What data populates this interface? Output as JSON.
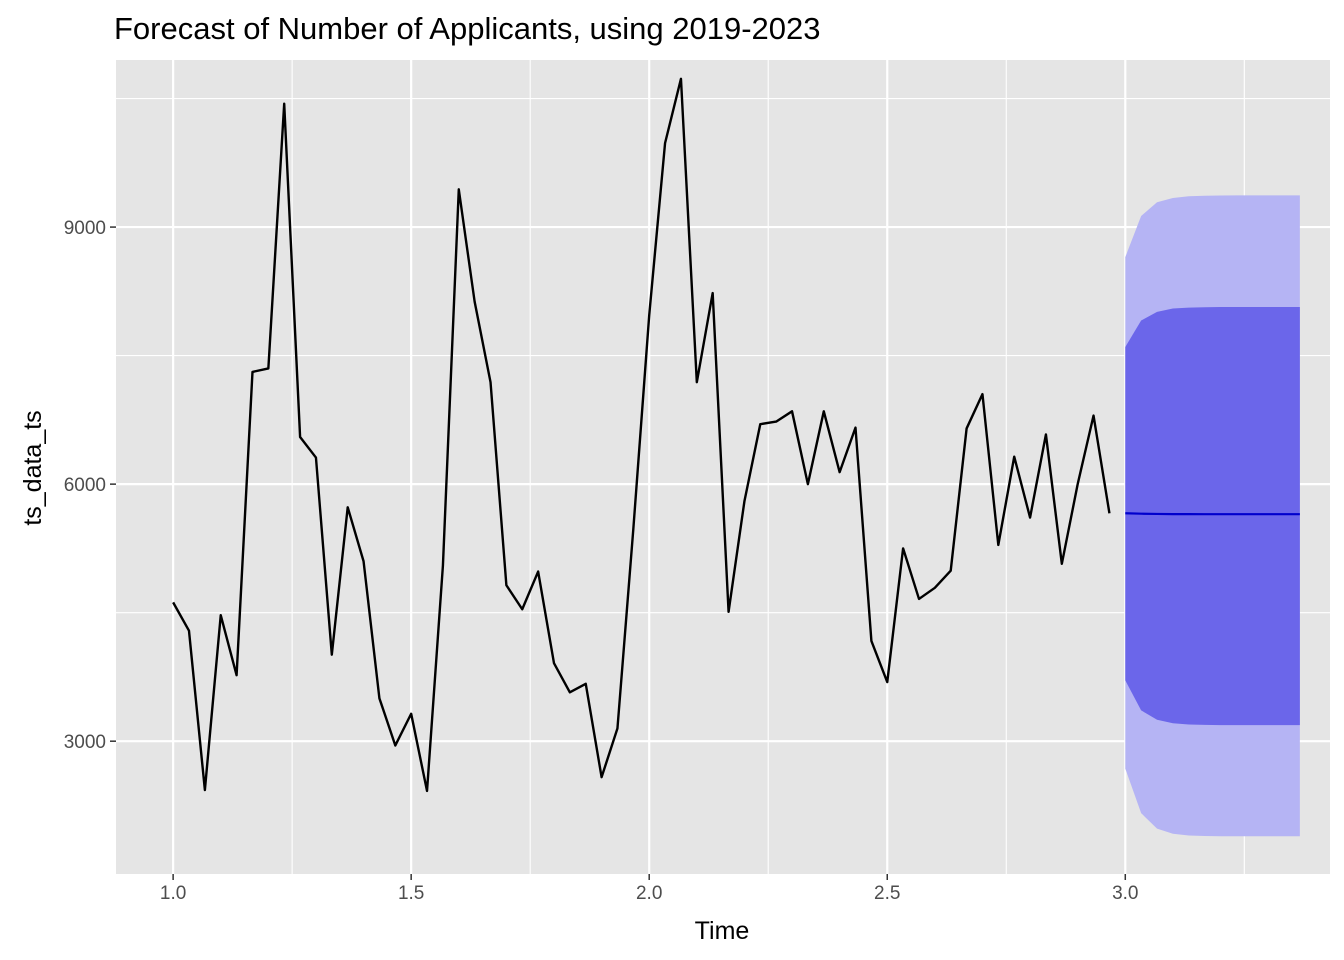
{
  "chart_data": {
    "type": "line",
    "title": "Forecast of Number of Applicants, using 2019-2023",
    "xlabel": "Time",
    "ylabel": "ts_data_ts",
    "xlim": [
      0.88,
      3.43
    ],
    "ylim": [
      1450,
      10950
    ],
    "x_ticks": [
      1.0,
      1.5,
      2.0,
      2.5,
      3.0
    ],
    "x_tick_labels": [
      "1.0",
      "1.5",
      "2.0",
      "2.5",
      "3.0"
    ],
    "x_minor_ticks": [
      1.25,
      1.75,
      2.25,
      2.75,
      3.25
    ],
    "y_ticks": [
      3000,
      6000,
      9000
    ],
    "y_tick_labels": [
      "3000",
      "6000",
      "9000"
    ],
    "y_minor_ticks": [
      4500,
      7500,
      10500
    ],
    "grid": true,
    "legend": "none",
    "colors": {
      "panel_bg": "#e5e5e5",
      "grid": "#ffffff",
      "series_line": "#000000",
      "forecast_line": "#0000cc",
      "band_95": "#b5b4f4",
      "band_80": "#6b66ea"
    },
    "series": [
      {
        "values": [
          [
            1.0,
            4620
          ],
          [
            1.0333,
            4290
          ],
          [
            1.0667,
            2430
          ],
          [
            1.1,
            4470
          ],
          [
            1.1333,
            3770
          ],
          [
            1.1667,
            7310
          ],
          [
            1.2,
            7350
          ],
          [
            1.2333,
            10440
          ],
          [
            1.2667,
            6550
          ],
          [
            1.3,
            6310
          ],
          [
            1.3333,
            4010
          ],
          [
            1.3667,
            5730
          ],
          [
            1.4,
            5100
          ],
          [
            1.4333,
            3500
          ],
          [
            1.4667,
            2950
          ],
          [
            1.5,
            3320
          ],
          [
            1.5333,
            2420
          ],
          [
            1.5667,
            5050
          ],
          [
            1.6,
            9440
          ],
          [
            1.6333,
            8130
          ],
          [
            1.6667,
            7190
          ],
          [
            1.7,
            4820
          ],
          [
            1.7333,
            4540
          ],
          [
            1.7667,
            4980
          ],
          [
            1.8,
            3910
          ],
          [
            1.8333,
            3570
          ],
          [
            1.8667,
            3670
          ],
          [
            1.9,
            2580
          ],
          [
            1.9333,
            3150
          ],
          [
            1.9667,
            5480
          ],
          [
            2.0,
            7970
          ],
          [
            2.0333,
            9980
          ],
          [
            2.0667,
            10730
          ],
          [
            2.1,
            7190
          ],
          [
            2.1333,
            8230
          ],
          [
            2.1667,
            4510
          ],
          [
            2.2,
            5800
          ],
          [
            2.2333,
            6700
          ],
          [
            2.2667,
            6730
          ],
          [
            2.3,
            6850
          ],
          [
            2.3333,
            6000
          ],
          [
            2.3667,
            6850
          ],
          [
            2.4,
            6140
          ],
          [
            2.4333,
            6660
          ],
          [
            2.4667,
            4170
          ],
          [
            2.5,
            3690
          ],
          [
            2.5333,
            5250
          ],
          [
            2.5667,
            4660
          ],
          [
            2.6,
            4790
          ],
          [
            2.6333,
            4990
          ],
          [
            2.6667,
            6650
          ],
          [
            2.7,
            7050
          ],
          [
            2.7333,
            5290
          ],
          [
            2.7667,
            6320
          ],
          [
            2.8,
            5610
          ],
          [
            2.8333,
            6580
          ],
          [
            2.8667,
            5070
          ],
          [
            2.9,
            6000
          ],
          [
            2.9333,
            6800
          ],
          [
            2.9667,
            5660
          ]
        ]
      }
    ],
    "forecast": {
      "x": [
        3.0,
        3.0333,
        3.0667,
        3.1,
        3.1333,
        3.1667,
        3.2,
        3.2333,
        3.2667,
        3.3,
        3.3333,
        3.3667
      ],
      "mean": [
        5660,
        5655,
        5652,
        5650,
        5650,
        5649,
        5649,
        5649,
        5649,
        5649,
        5649,
        5649
      ],
      "lower_80": [
        3710,
        3360,
        3250,
        3210,
        3195,
        3190,
        3188,
        3187,
        3187,
        3187,
        3187,
        3187
      ],
      "upper_80": [
        7600,
        7910,
        8010,
        8050,
        8060,
        8065,
        8067,
        8068,
        8068,
        8068,
        8068,
        8068
      ],
      "lower_95": [
        2680,
        2160,
        1980,
        1920,
        1900,
        1893,
        1891,
        1890,
        1890,
        1890,
        1890,
        1890
      ],
      "upper_95": [
        8650,
        9130,
        9290,
        9340,
        9360,
        9365,
        9368,
        9370,
        9370,
        9370,
        9370,
        9370
      ]
    }
  }
}
